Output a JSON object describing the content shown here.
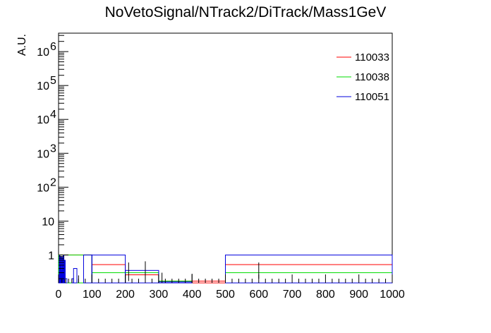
{
  "chart_data": {
    "type": "histogram",
    "title": "NoVetoSignal/NTrack2/DiTrack/Mass1GeV",
    "xlabel": "",
    "ylabel": "A.U.",
    "xlim": [
      0,
      1000
    ],
    "ylim": [
      0.15,
      3500000
    ],
    "yscale": "log",
    "grid": false,
    "legend_position": "top-right",
    "x_tick_labels": [
      "0",
      "100",
      "200",
      "300",
      "400",
      "500",
      "600",
      "700",
      "800",
      "900",
      "1000"
    ],
    "y_tick_labels": [
      {
        "value": 1,
        "base": "1",
        "exp": ""
      },
      {
        "value": 10,
        "base": "10",
        "exp": ""
      },
      {
        "value": 100,
        "base": "10",
        "exp": "2"
      },
      {
        "value": 1000,
        "base": "10",
        "exp": "3"
      },
      {
        "value": 10000,
        "base": "10",
        "exp": "4"
      },
      {
        "value": 100000,
        "base": "10",
        "exp": "5"
      },
      {
        "value": 1000000,
        "base": "10",
        "exp": "6"
      }
    ],
    "series": [
      {
        "name": "110033",
        "color": "#ff0000",
        "bins": [
          {
            "x0": 0,
            "x1": 100,
            "y": 1.0
          },
          {
            "x0": 100,
            "x1": 200,
            "y": 0.52
          },
          {
            "x0": 200,
            "x1": 300,
            "y": 0.26
          },
          {
            "x0": 300,
            "x1": 500,
            "y": 0.17
          },
          {
            "x0": 500,
            "x1": 1000,
            "y": 0.52
          }
        ]
      },
      {
        "name": "110038",
        "color": "#00dd00",
        "bins": [
          {
            "x0": 0,
            "x1": 100,
            "y": 1.0
          },
          {
            "x0": 100,
            "x1": 200,
            "y": 0.3
          },
          {
            "x0": 200,
            "x1": 300,
            "y": 0.3
          },
          {
            "x0": 300,
            "x1": 400,
            "y": 0.17
          },
          {
            "x0": 400,
            "x1": 500,
            "y": 0.15
          },
          {
            "x0": 500,
            "x1": 1000,
            "y": 0.3
          }
        ]
      },
      {
        "name": "110051",
        "color": "#0000dd",
        "bins": [
          {
            "x0": 0,
            "x1": 2,
            "y": 0.25
          },
          {
            "x0": 2,
            "x1": 4,
            "y": 0.95
          },
          {
            "x0": 4,
            "x1": 6,
            "y": 0.5
          },
          {
            "x0": 6,
            "x1": 8,
            "y": 0.9
          },
          {
            "x0": 8,
            "x1": 10,
            "y": 0.35
          },
          {
            "x0": 10,
            "x1": 12,
            "y": 0.85
          },
          {
            "x0": 12,
            "x1": 14,
            "y": 0.4
          },
          {
            "x0": 14,
            "x1": 16,
            "y": 0.95
          },
          {
            "x0": 16,
            "x1": 18,
            "y": 0.3
          },
          {
            "x0": 18,
            "x1": 20,
            "y": 0.7
          },
          {
            "x0": 20,
            "x1": 25,
            "y": 0.2
          },
          {
            "x0": 25,
            "x1": 40,
            "y": 0.15
          },
          {
            "x0": 40,
            "x1": 45,
            "y": 0.2
          },
          {
            "x0": 45,
            "x1": 55,
            "y": 0.4
          },
          {
            "x0": 55,
            "x1": 75,
            "y": 0.15
          },
          {
            "x0": 75,
            "x1": 100,
            "y": 1.0
          },
          {
            "x0": 100,
            "x1": 200,
            "y": 1.0
          },
          {
            "x0": 200,
            "x1": 300,
            "y": 0.35
          },
          {
            "x0": 300,
            "x1": 400,
            "y": 0.16
          },
          {
            "x0": 400,
            "x1": 500,
            "y": 0.15
          },
          {
            "x0": 500,
            "x1": 1000,
            "y": 1.0
          }
        ]
      }
    ],
    "error_bars": [
      {
        "x": 60,
        "lo": 0.15,
        "hi": 0.25
      },
      {
        "x": 210,
        "lo": 0.17,
        "hi": 0.6
      },
      {
        "x": 260,
        "lo": 0.2,
        "hi": 0.65
      },
      {
        "x": 310,
        "lo": 0.15,
        "hi": 0.3
      },
      {
        "x": 400,
        "lo": 0.15,
        "hi": 0.28
      },
      {
        "x": 600,
        "lo": 0.2,
        "hi": 0.6
      }
    ]
  }
}
